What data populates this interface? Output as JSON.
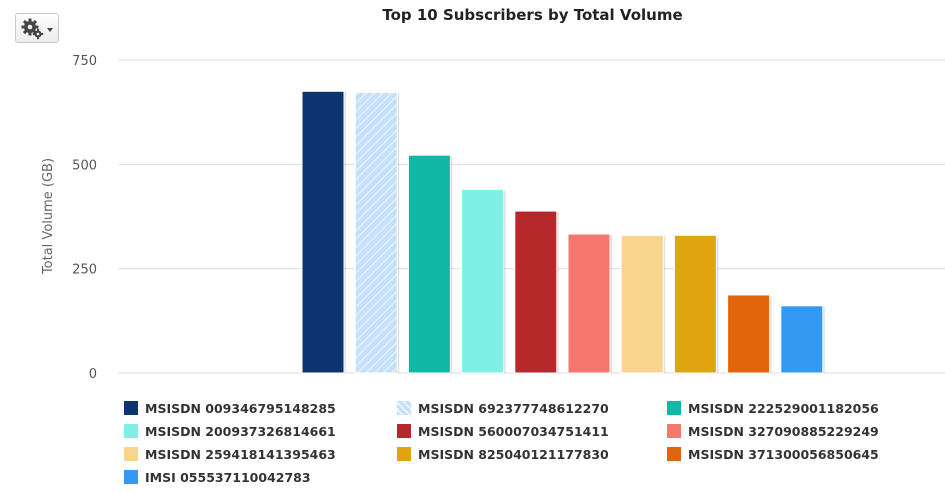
{
  "toolbar": {
    "settings_icon": "gear-icon",
    "dropdown_icon": "caret-down-icon"
  },
  "chart_data": {
    "type": "bar",
    "title": "Top 10 Subscribers by Total Volume",
    "ylabel": "Total Volume (GB)",
    "xlabel": "",
    "ylim": [
      0,
      750
    ],
    "yticks": [
      "0",
      "250",
      "500",
      "750"
    ],
    "grid": true,
    "legend_position": "bottom",
    "series": [
      {
        "name": "MSISDN 009346795148285",
        "value": 675,
        "color": "#0d3471"
      },
      {
        "name": "MSISDN 692377748612270",
        "value": 672,
        "color": "#c4e0fa",
        "pattern": "hatched"
      },
      {
        "name": "MSISDN 222529001182056",
        "value": 522,
        "color": "#12b8a6"
      },
      {
        "name": "MSISDN 200937326814661",
        "value": 440,
        "color": "#7ef0e6"
      },
      {
        "name": "MSISDN 560007034751411",
        "value": 388,
        "color": "#b5282c"
      },
      {
        "name": "MSISDN 327090885229249",
        "value": 333,
        "color": "#f6776e"
      },
      {
        "name": "MSISDN 259418141395463",
        "value": 330,
        "color": "#f7d58d"
      },
      {
        "name": "MSISDN 825040121177830",
        "value": 330,
        "color": "#dfa40f"
      },
      {
        "name": "MSISDN 371300056850645",
        "value": 187,
        "color": "#e2650c"
      },
      {
        "name": "IMSI 055537110042783",
        "value": 161,
        "color": "#3399f3"
      }
    ]
  }
}
